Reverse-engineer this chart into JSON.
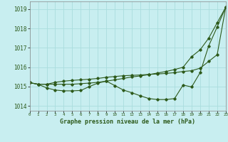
{
  "title": "Graphe pression niveau de la mer (hPa)",
  "background_color": "#c8eef0",
  "grid_color": "#aadddd",
  "line_color": "#2d5a1b",
  "x_labels": [
    "0",
    "1",
    "2",
    "3",
    "4",
    "5",
    "6",
    "7",
    "8",
    "9",
    "10",
    "11",
    "12",
    "13",
    "14",
    "15",
    "16",
    "17",
    "18",
    "19",
    "20",
    "21",
    "22",
    "23"
  ],
  "xlim": [
    0,
    23
  ],
  "ylim": [
    1013.75,
    1019.4
  ],
  "yticks": [
    1014,
    1015,
    1016,
    1017,
    1018,
    1019
  ],
  "series1": [
    1015.2,
    1015.12,
    1015.12,
    1015.12,
    1015.12,
    1015.12,
    1015.15,
    1015.18,
    1015.22,
    1015.28,
    1015.35,
    1015.42,
    1015.5,
    1015.55,
    1015.62,
    1015.7,
    1015.78,
    1015.88,
    1016.0,
    1016.55,
    1016.9,
    1017.5,
    1018.3,
    1019.1
  ],
  "series2": [
    1015.2,
    1015.12,
    1014.93,
    1014.82,
    1014.78,
    1014.78,
    1014.8,
    1015.0,
    1015.18,
    1015.28,
    1015.05,
    1014.82,
    1014.68,
    1014.52,
    1014.38,
    1014.33,
    1014.33,
    1014.38,
    1015.08,
    1014.98,
    1015.72,
    1017.1,
    1018.08,
    1019.1
  ],
  "series3": [
    1015.2,
    1015.12,
    1015.12,
    1015.22,
    1015.28,
    1015.32,
    1015.35,
    1015.38,
    1015.42,
    1015.48,
    1015.52,
    1015.56,
    1015.58,
    1015.6,
    1015.63,
    1015.65,
    1015.68,
    1015.72,
    1015.78,
    1015.82,
    1015.95,
    1016.3,
    1016.65,
    1019.1
  ]
}
